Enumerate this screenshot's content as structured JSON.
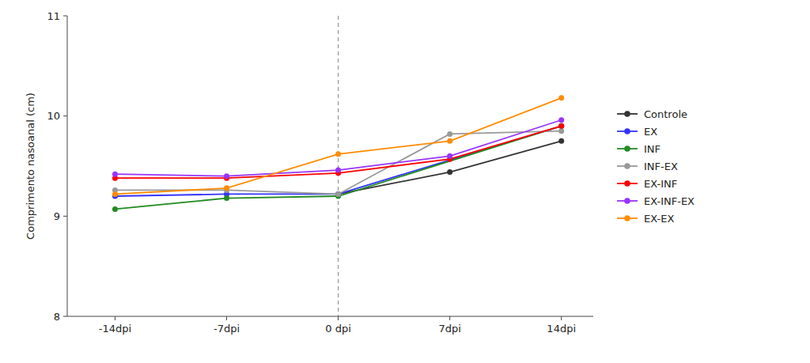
{
  "chart_data": {
    "type": "line",
    "ylabel": "Comprimento nasoanal (cm)",
    "xlim": [
      -17,
      16
    ],
    "xticks": [
      {
        "value": -14,
        "label": "-14dpi"
      },
      {
        "value": -7,
        "label": "-7dpi"
      },
      {
        "value": 0,
        "label": "0 dpi"
      },
      {
        "value": 7,
        "label": "7dpi"
      },
      {
        "value": 14,
        "label": "14dpi"
      }
    ],
    "ylim": [
      8.0,
      11.0
    ],
    "yticks": [
      8,
      9,
      10,
      11
    ],
    "vlines": [
      0
    ],
    "grid": false,
    "legend": "right",
    "marker": "circle",
    "series": [
      {
        "name": "Controle",
        "color": "#333333",
        "x": [
          0,
          7,
          14
        ],
        "values": [
          9.22,
          9.44,
          9.75
        ]
      },
      {
        "name": "EX",
        "color": "#3333FF",
        "x": [
          -14,
          -7,
          0,
          14
        ],
        "values": [
          9.2,
          9.22,
          9.22,
          9.9
        ]
      },
      {
        "name": "INF",
        "color": "#228B22",
        "x": [
          -14,
          -7,
          0,
          14
        ],
        "values": [
          9.07,
          9.18,
          9.2,
          9.9
        ]
      },
      {
        "name": "INF-EX",
        "color": "#999999",
        "x": [
          -14,
          -7,
          0,
          7,
          14
        ],
        "values": [
          9.26,
          9.26,
          9.22,
          9.82,
          9.85
        ]
      },
      {
        "name": "EX-INF",
        "color": "#FF0000",
        "x": [
          -14,
          -7,
          0,
          7,
          14
        ],
        "values": [
          9.38,
          9.38,
          9.43,
          9.57,
          9.9
        ]
      },
      {
        "name": "EX-INF-EX",
        "color": "#9933FF",
        "x": [
          -14,
          -7,
          0,
          7,
          14
        ],
        "values": [
          9.42,
          9.4,
          9.46,
          9.6,
          9.96
        ]
      },
      {
        "name": "EX-EX",
        "color": "#FF8C00",
        "x": [
          -14,
          -7,
          0,
          7,
          14
        ],
        "values": [
          9.22,
          9.28,
          9.62,
          9.75,
          10.18
        ]
      }
    ]
  }
}
